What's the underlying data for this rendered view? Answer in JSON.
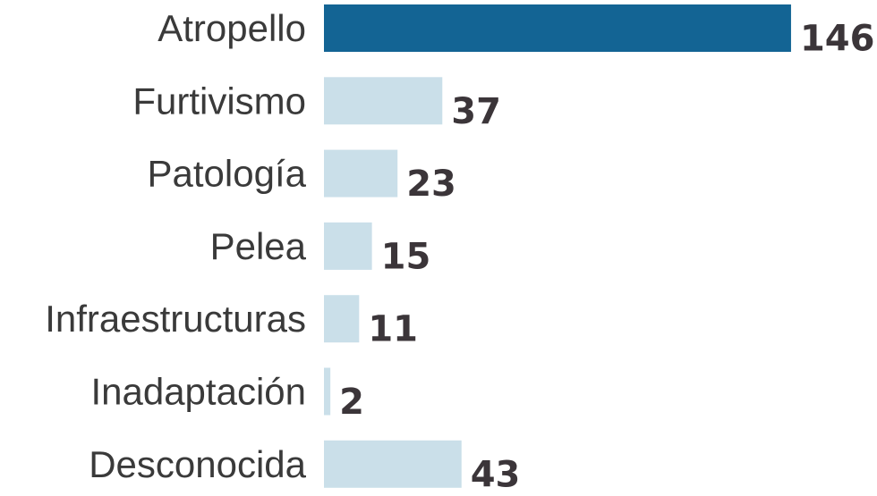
{
  "chart_data": {
    "type": "bar",
    "orientation": "horizontal",
    "categories": [
      "Atropello",
      "Furtivismo",
      "Patología",
      "Pelea",
      "Infraestructuras",
      "Inadaptación",
      "Desconocida"
    ],
    "values": [
      146,
      37,
      23,
      15,
      11,
      2,
      43
    ],
    "highlight_index": 0,
    "colors": {
      "highlight": "#136494",
      "default": "#cadfe9",
      "category_text": "#3a3a3a",
      "value_text": "#3b3539"
    },
    "title": "",
    "xlabel": "",
    "ylabel": "",
    "grid": false,
    "legend": "none"
  }
}
